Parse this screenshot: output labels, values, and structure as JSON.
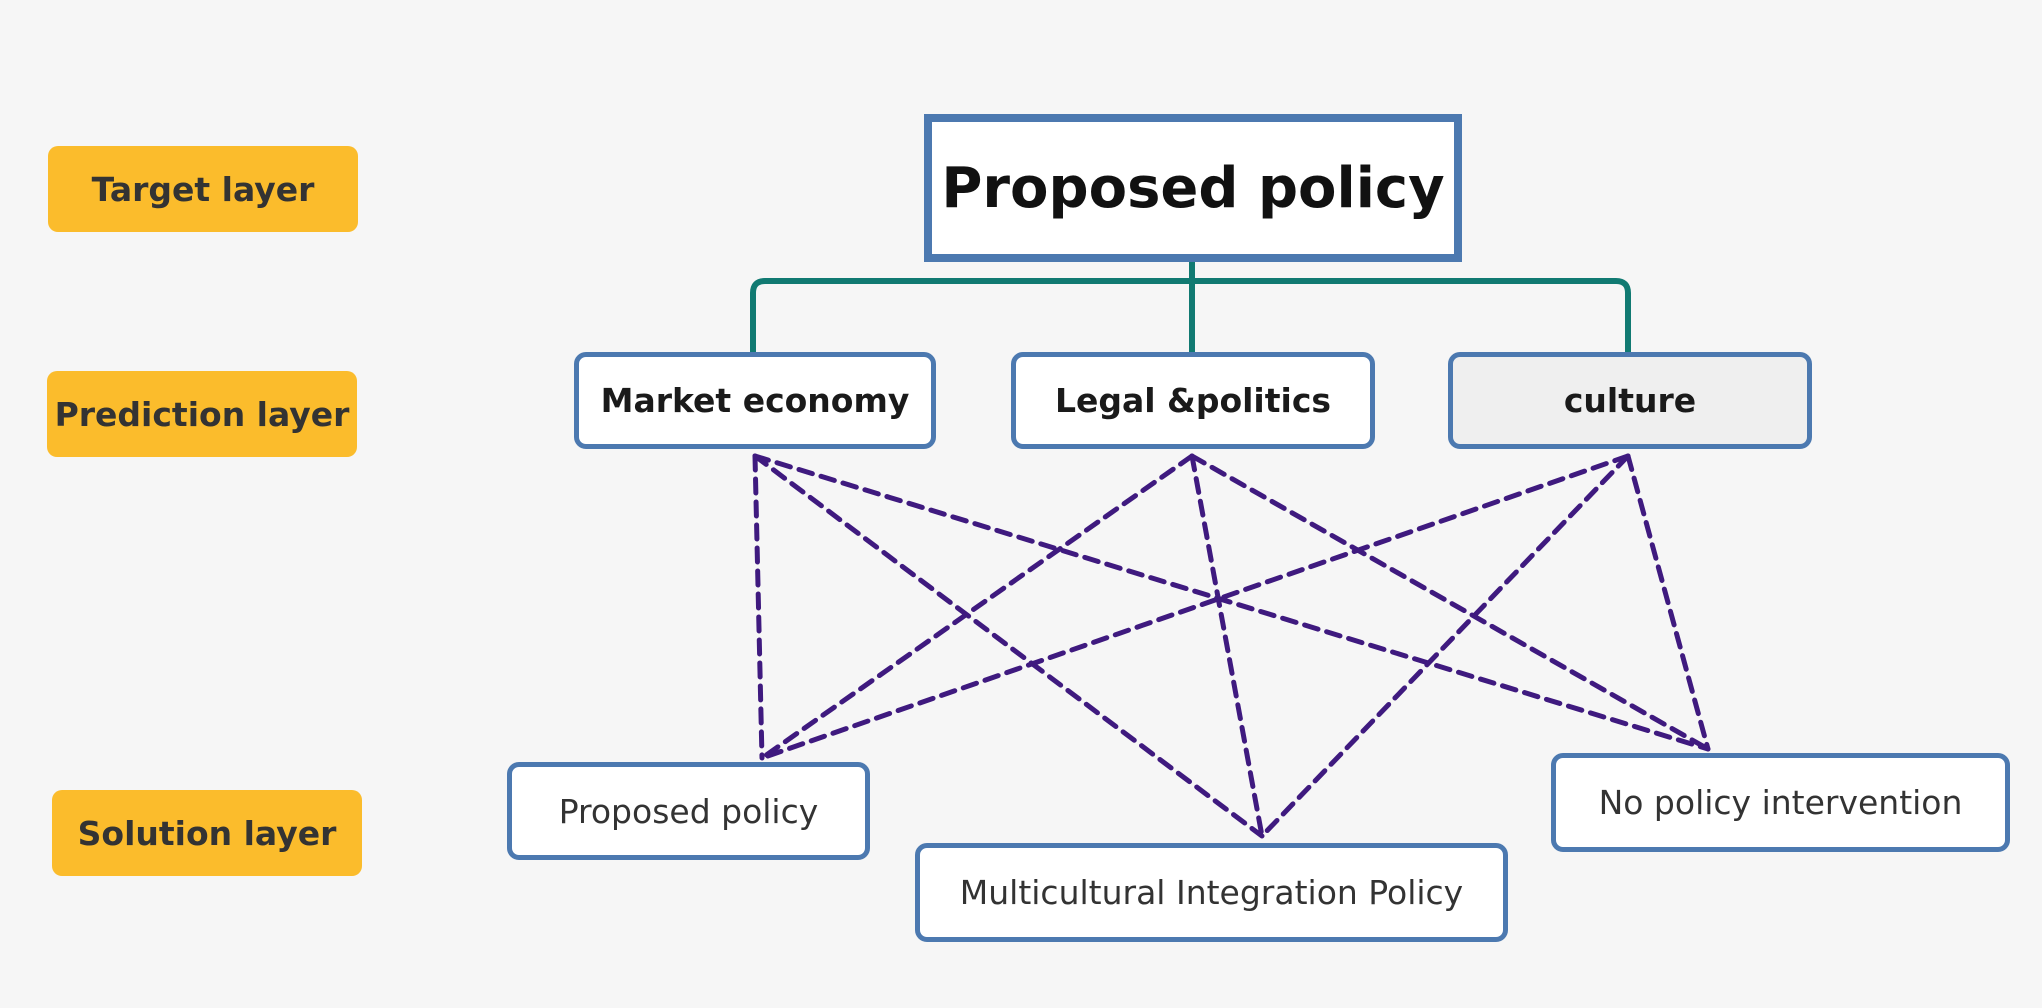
{
  "layers": {
    "target": "Target layer",
    "prediction": "Prediction layer",
    "solution": "Solution layer"
  },
  "target_node": "Proposed policy",
  "prediction_nodes": [
    "Market economy",
    "Legal &politics",
    "culture"
  ],
  "solution_nodes": [
    "Proposed policy",
    "Multicultural Integration Policy",
    "No policy intervention"
  ],
  "colors": {
    "background": "#f6f6f6",
    "layer_label_bg": "#fbbc2c",
    "node_border": "#4c79b0",
    "tree_connector": "#117a72",
    "dashed_links": "#3f1a7f"
  }
}
